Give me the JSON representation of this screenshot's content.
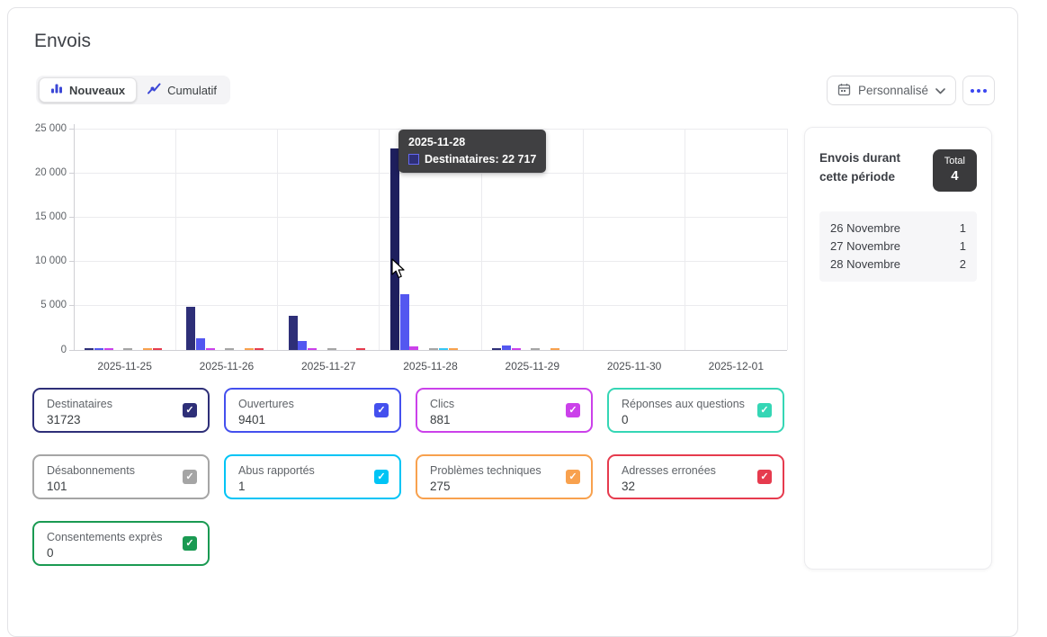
{
  "page": {
    "title": "Envois"
  },
  "toolbar": {
    "views": [
      {
        "label": "Nouveaux",
        "icon": "bar-chart-icon",
        "selected": true
      },
      {
        "label": "Cumulatif",
        "icon": "line-chart-icon",
        "selected": false
      }
    ],
    "period_label": "Personnalisé",
    "accent_color": "#3a46f0"
  },
  "chart_data": {
    "type": "bar",
    "title": "Envois",
    "x": [
      "2025-11-25",
      "2025-11-26",
      "2025-11-27",
      "2025-11-28",
      "2025-11-29",
      "2025-11-30",
      "2025-12-01"
    ],
    "ylim": [
      0,
      25000
    ],
    "yticks": [
      {
        "v": 0,
        "label": "0"
      },
      {
        "v": 5000,
        "label": "5 000"
      },
      {
        "v": 10000,
        "label": "10 000"
      },
      {
        "v": 15000,
        "label": "15 000"
      },
      {
        "v": 20000,
        "label": "20 000"
      },
      {
        "v": 25000,
        "label": "25 000"
      }
    ],
    "grid": true,
    "legend_position": "none",
    "series": [
      {
        "name": "Destinataires",
        "color": "#2e2f78",
        "values": [
          146,
          4900,
          3900,
          22717,
          60,
          0,
          0
        ]
      },
      {
        "name": "Ouvertures",
        "color": "#5357f0",
        "values": [
          181,
          1370,
          1030,
          6300,
          520,
          0,
          0
        ]
      },
      {
        "name": "Clics",
        "color": "#cb41ea",
        "values": [
          55,
          220,
          160,
          416,
          30,
          0,
          0
        ]
      },
      {
        "name": "Réponses aux questions",
        "color": "#35d6b5",
        "values": [
          0,
          0,
          0,
          0,
          0,
          0,
          0
        ]
      },
      {
        "name": "Désabonnements",
        "color": "#a5a5a5",
        "values": [
          10,
          25,
          20,
          40,
          6,
          0,
          0
        ]
      },
      {
        "name": "Abus rapportés",
        "color": "#36c6f4",
        "values": [
          0,
          0,
          0,
          1,
          0,
          0,
          0
        ]
      },
      {
        "name": "Problèmes techniques",
        "color": "#f8a14e",
        "values": [
          50,
          40,
          0,
          150,
          35,
          0,
          0
        ]
      },
      {
        "name": "Adresses erronées",
        "color": "#e63b4e",
        "values": [
          15,
          10,
          7,
          0,
          0,
          0,
          0
        ]
      },
      {
        "name": "Consentements exprès",
        "color": "#1a9a52",
        "values": [
          0,
          0,
          0,
          0,
          0,
          0,
          0
        ]
      }
    ],
    "highlight": {
      "x": "2025-11-28",
      "series": "Destinataires",
      "color": "#1e1f5e"
    }
  },
  "tooltip": {
    "title": "2025-11-28",
    "text": "Destinataires: 22 717",
    "swatch_color": "#2e2f78",
    "swatch_border": "#6468f0"
  },
  "metrics": [
    {
      "label": "Destinataires",
      "value": "31723",
      "color": "#2e2f78",
      "checked": true
    },
    {
      "label": "Ouvertures",
      "value": "9401",
      "color": "#4450ee",
      "checked": true
    },
    {
      "label": "Clics",
      "value": "881",
      "color": "#cb41ea",
      "checked": true
    },
    {
      "label": "Réponses aux questions",
      "value": "0",
      "color": "#35d6b5",
      "checked": true
    },
    {
      "label": "Désabonnements",
      "value": "101",
      "color": "#a5a5a5",
      "checked": true
    },
    {
      "label": "Abus rapportés",
      "value": "1",
      "color": "#00c4f5",
      "checked": true
    },
    {
      "label": "Problèmes techniques",
      "value": "275",
      "color": "#f8a14e",
      "checked": true
    },
    {
      "label": "Adresses erronées",
      "value": "32",
      "color": "#e63b4e",
      "checked": true
    },
    {
      "label": "Consentements exprès",
      "value": "0",
      "color": "#1a9a52",
      "checked": true
    }
  ],
  "side_panel": {
    "title": "Envois durant cette période",
    "total_label": "Total",
    "total_value": "4",
    "rows": [
      {
        "label": "26 Novembre",
        "value": "1"
      },
      {
        "label": "27 Novembre",
        "value": "1"
      },
      {
        "label": "28 Novembre",
        "value": "2"
      }
    ]
  }
}
